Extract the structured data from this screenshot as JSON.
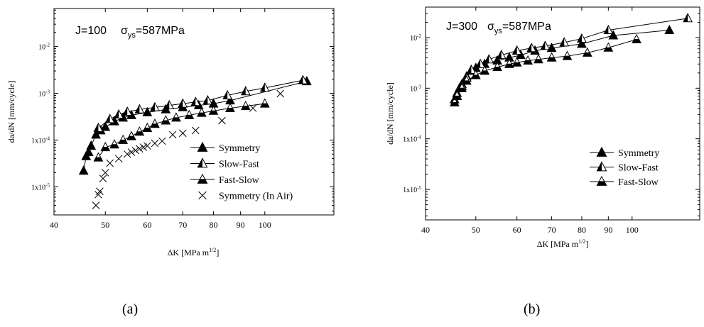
{
  "figure": {
    "captions": [
      "(a)",
      "(b)"
    ]
  },
  "chart_data": [
    {
      "type": "scatter",
      "panel": "a",
      "title": "J=100",
      "annotation": {
        "sigma": "σ",
        "subscript": "ys",
        "value": "=587MPa"
      },
      "xlabel": "ΔK  [MPa m",
      "xlabel_sup": "1/2",
      "xlabel_end": "]",
      "ylabel": "da/dN [mm/cycle]",
      "x_scale": "log",
      "y_scale": "log",
      "xlim": [
        40,
        135
      ],
      "ylim": [
        2.5e-06,
        0.065
      ],
      "x_ticks": [
        40,
        50,
        60,
        70,
        80,
        90,
        100
      ],
      "y_ticks": [
        1e-05,
        0.0001,
        0.001,
        0.01
      ],
      "y_tick_labels": [
        "1x10-5",
        "1x10-4",
        "10-3",
        "10-2"
      ],
      "legend_position": "lower-right",
      "series": [
        {
          "name": "Symmetry",
          "marker": "triangle-filled",
          "line": true,
          "x": [
            45.5,
            46,
            46.5,
            47,
            48,
            49,
            50,
            52,
            54,
            56,
            60,
            65,
            70,
            75,
            80,
            86,
            120
          ],
          "y": [
            2.2e-05,
            4.5e-05,
            5.5e-05,
            7.5e-05,
            0.00013,
            0.00016,
            0.00019,
            0.00025,
            0.0003,
            0.00034,
            0.00039,
            0.00045,
            0.0005,
            0.00055,
            0.0006,
            0.0007,
            0.0018
          ]
        },
        {
          "name": "Slow-Fast",
          "marker": "triangle-half-left",
          "line": true,
          "x": [
            48.5,
            51,
            53,
            55,
            58,
            62,
            66,
            70,
            74,
            78,
            85,
            92,
            100,
            118
          ],
          "y": [
            0.00018,
            0.00028,
            0.00035,
            0.0004,
            0.00045,
            0.0005,
            0.00055,
            0.0006,
            0.00065,
            0.0007,
            0.0009,
            0.0011,
            0.0013,
            0.0019
          ]
        },
        {
          "name": "Fast-Slow",
          "marker": "triangle-half-bottom",
          "line": true,
          "x": [
            48.5,
            50,
            52,
            54,
            56,
            58,
            60,
            62,
            65,
            68,
            72,
            76,
            80,
            86,
            92,
            100
          ],
          "y": [
            4.2e-05,
            7e-05,
            8e-05,
            0.0001,
            0.00012,
            0.00015,
            0.00018,
            0.00022,
            0.00026,
            0.0003,
            0.00034,
            0.00038,
            0.00042,
            0.00048,
            0.00053,
            0.0006
          ]
        },
        {
          "name": "Symmetry (In Air)",
          "marker": "x",
          "line": false,
          "x": [
            48,
            48.5,
            48.8,
            49.5,
            50,
            51,
            53,
            55,
            56,
            57,
            58,
            59,
            60,
            62,
            64,
            67,
            70,
            74,
            83,
            95,
            107
          ],
          "y": [
            4e-06,
            6.8e-06,
            8e-06,
            1.5e-05,
            2e-05,
            3.2e-05,
            4e-05,
            5e-05,
            5.5e-05,
            6e-05,
            6.5e-05,
            7e-05,
            7.5e-05,
            8.5e-05,
            9.5e-05,
            0.00013,
            0.00014,
            0.00016,
            0.00026,
            0.00048,
            0.00098
          ]
        }
      ]
    },
    {
      "type": "scatter",
      "panel": "b",
      "title": "J=300",
      "annotation": {
        "sigma": "σ",
        "subscript": "ys",
        "value": "=587MPa"
      },
      "xlabel": "ΔK  [MPa m",
      "xlabel_sup": "1/2",
      "xlabel_end": "]",
      "ylabel": "da/dN [mm/cycle]",
      "x_scale": "log",
      "y_scale": "log",
      "xlim": [
        40,
        135
      ],
      "ylim": [
        2.5e-06,
        0.04
      ],
      "x_ticks": [
        40,
        50,
        60,
        70,
        80,
        90,
        100
      ],
      "y_ticks": [
        1e-05,
        0.0001,
        0.001,
        0.01
      ],
      "y_tick_labels": [
        "1x10-5",
        "1x10-4",
        "10-3",
        "10-2"
      ],
      "legend_position": "lower-right",
      "series": [
        {
          "name": "Symmetry",
          "marker": "triangle-filled",
          "line": true,
          "x": [
            45.5,
            46,
            46.5,
            47,
            48,
            49,
            50,
            52,
            55,
            58,
            61,
            65,
            70,
            80,
            92,
            118
          ],
          "y": [
            0.0006,
            0.0008,
            0.001,
            0.0012,
            0.0017,
            0.0022,
            0.0025,
            0.003,
            0.0035,
            0.004,
            0.0045,
            0.0055,
            0.0062,
            0.0075,
            0.011,
            0.014
          ]
        },
        {
          "name": "Slow-Fast",
          "marker": "triangle-half-left",
          "line": true,
          "x": [
            46,
            47,
            48,
            49,
            51,
            53,
            56,
            60,
            64,
            68,
            74,
            80,
            90,
            128
          ],
          "y": [
            0.0007,
            0.0011,
            0.0016,
            0.0023,
            0.003,
            0.0037,
            0.0045,
            0.0055,
            0.0062,
            0.0068,
            0.008,
            0.0095,
            0.014,
            0.024
          ]
        },
        {
          "name": "Fast-Slow",
          "marker": "triangle-half-bottom",
          "line": true,
          "x": [
            45.5,
            46,
            47,
            48,
            50,
            52,
            55,
            58,
            60,
            63,
            66,
            70,
            75,
            82,
            90,
            102
          ],
          "y": [
            0.00052,
            0.0007,
            0.001,
            0.0014,
            0.0018,
            0.0022,
            0.0026,
            0.003,
            0.0032,
            0.0035,
            0.0037,
            0.004,
            0.0043,
            0.005,
            0.0063,
            0.0092
          ]
        }
      ]
    }
  ]
}
